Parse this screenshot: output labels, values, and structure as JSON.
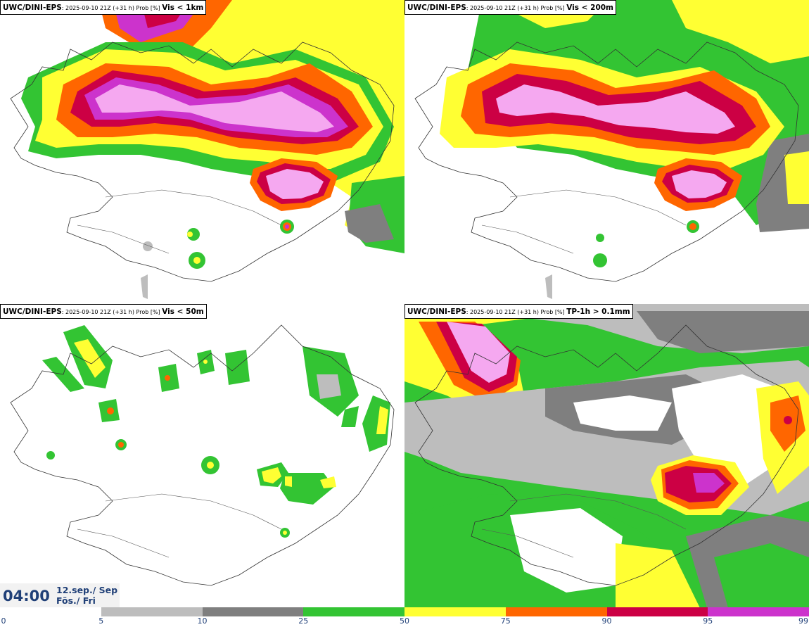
{
  "panels": [
    {
      "model": "UWC/DINI-EPS",
      "meta": ": 2025-09-10 21Z (+31 h) Prob [%] ",
      "field": "Vis < 1km"
    },
    {
      "model": "UWC/DINI-EPS",
      "meta": ": 2025-09-10 21Z (+31 h) Prob [%] ",
      "field": "Vis < 200m"
    },
    {
      "model": "UWC/DINI-EPS",
      "meta": ": 2025-09-10 21Z (+31 h) Prob [%] ",
      "field": "Vis < 50m"
    },
    {
      "model": "UWC/DINI-EPS",
      "meta": ": 2025-09-10 21Z (+31 h) Prob [%] ",
      "field": "TP-1h > 0.1mm"
    }
  ],
  "valid_time": {
    "time": "04:00",
    "date": "12.sep./ Sep",
    "day": "Fös./ Fri"
  },
  "colorbar": {
    "ticks": [
      "0",
      "5",
      "10",
      "25",
      "50",
      "75",
      "90",
      "95",
      "99"
    ],
    "colors": [
      "#ffffff",
      "#bdbdbd",
      "#7f7f7f",
      "#33c433",
      "#ffff33",
      "#ff6600",
      "#cc0044",
      "#cc33cc",
      "#f5a8f0"
    ]
  }
}
